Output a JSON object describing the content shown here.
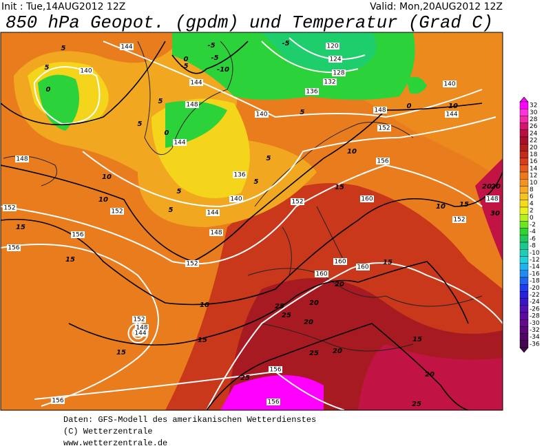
{
  "header": {
    "init": "Init : Tue,14AUG2012 12Z",
    "valid": "Valid: Mon,20AUG2012 12Z",
    "title": "850 hPa Geopot. (gpdm) und Temperatur (Grad C)"
  },
  "colorbar": {
    "ticks": [
      32,
      30,
      28,
      26,
      24,
      22,
      20,
      18,
      16,
      14,
      12,
      10,
      8,
      6,
      4,
      2,
      0,
      -2,
      -4,
      -6,
      -8,
      -10,
      -12,
      -14,
      -16,
      -18,
      -20,
      -22,
      -24,
      -26,
      -28,
      -30,
      -32,
      -34,
      -36
    ],
    "colors": [
      "#ff00ff",
      "#ff33dd",
      "#f22aa8",
      "#d4146e",
      "#b8103f",
      "#a80f28",
      "#b31c1c",
      "#c62a1a",
      "#d93c18",
      "#e65a1a",
      "#ef781e",
      "#f4931f",
      "#f7ab21",
      "#f7c31e",
      "#f5dc1a",
      "#eaf01a",
      "#b8f01a",
      "#6ee61e",
      "#2ed42e",
      "#1ec85a",
      "#1ec88c",
      "#1ecdb4",
      "#1ed2dc",
      "#1eb4f0",
      "#1e8cf0",
      "#1e64f0",
      "#1e3cf0",
      "#2820dc",
      "#3c14c8",
      "#5010b4",
      "#5a0ca0",
      "#640a8c",
      "#5a0878",
      "#500664",
      "#460550"
    ]
  },
  "geopotential_labels": [
    144,
    140,
    120,
    124,
    128,
    132,
    136,
    140,
    148,
    144,
    144,
    148,
    152,
    156,
    140,
    144,
    148,
    152,
    156,
    156,
    152,
    144,
    148,
    152,
    136,
    140,
    152,
    160,
    160,
    160,
    160,
    152,
    148,
    152,
    148,
    144,
    156,
    156,
    156
  ],
  "temperature_labels": [
    5,
    0,
    5,
    -5,
    -5,
    0,
    -10,
    -5,
    5,
    5,
    10,
    10,
    15,
    15,
    10,
    15,
    15,
    20,
    20,
    20,
    25,
    25,
    25,
    20,
    25,
    15,
    15,
    20,
    25,
    10,
    15,
    20,
    20,
    30,
    10,
    0,
    5,
    10,
    15,
    5,
    5,
    5,
    5,
    0,
    -5
  ],
  "footer": [
    "Daten: GFS-Modell des amerikanischen Wetterdienstes",
    "(C) Wetterzentrale",
    "www.wetterzentrale.de"
  ]
}
